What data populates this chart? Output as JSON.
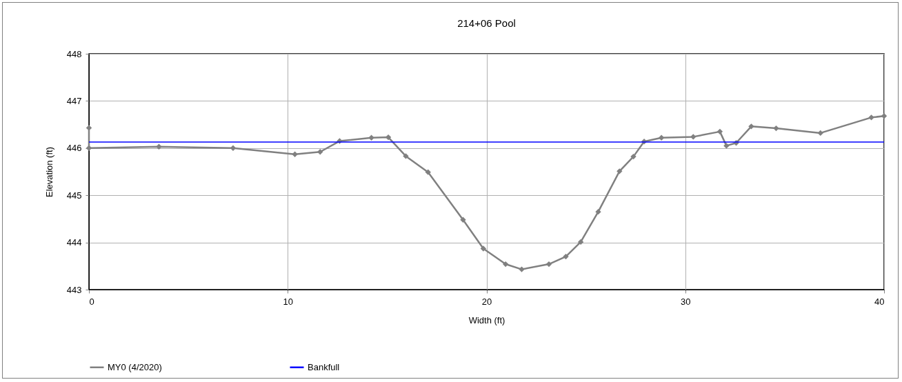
{
  "chart_data": {
    "type": "line",
    "title": "214+06 Pool",
    "xlabel": "Width (ft)",
    "ylabel": "Elevation (ft)",
    "xlim": [
      0,
      40
    ],
    "xticks": [
      0,
      10,
      20,
      30,
      40
    ],
    "ylim": [
      443,
      448
    ],
    "yticks": [
      443,
      444,
      445,
      446,
      447,
      448
    ],
    "grid": true,
    "legend": "bottom",
    "marker": "diamond",
    "series": [
      {
        "name": "MY0 (4/2020)",
        "color": "#808080",
        "x": [
          0,
          0,
          3.52,
          7.25,
          10.36,
          11.63,
          12.61,
          14.21,
          15.06,
          15.94,
          17.06,
          18.82,
          19.84,
          20.96,
          21.77,
          23.14,
          23.99,
          24.74,
          25.62,
          26.69,
          27.39,
          27.93,
          28.8,
          30.4,
          31.74,
          32.07,
          32.56,
          33.32,
          34.57,
          36.8,
          39.36,
          40
        ],
        "values": [
          446.43,
          446.0,
          446.03,
          446.0,
          445.87,
          445.92,
          446.15,
          446.22,
          446.23,
          445.83,
          445.49,
          444.48,
          443.87,
          443.54,
          443.43,
          443.54,
          443.7,
          444.01,
          444.65,
          445.51,
          445.82,
          446.14,
          446.22,
          446.24,
          446.35,
          446.05,
          446.11,
          446.46,
          446.42,
          446.32,
          446.65,
          446.68
        ]
      },
      {
        "name": "Bankfull",
        "color": "#0000ff",
        "marker": "none",
        "x": [
          0,
          40
        ],
        "values": [
          446.13,
          446.13
        ]
      }
    ]
  }
}
